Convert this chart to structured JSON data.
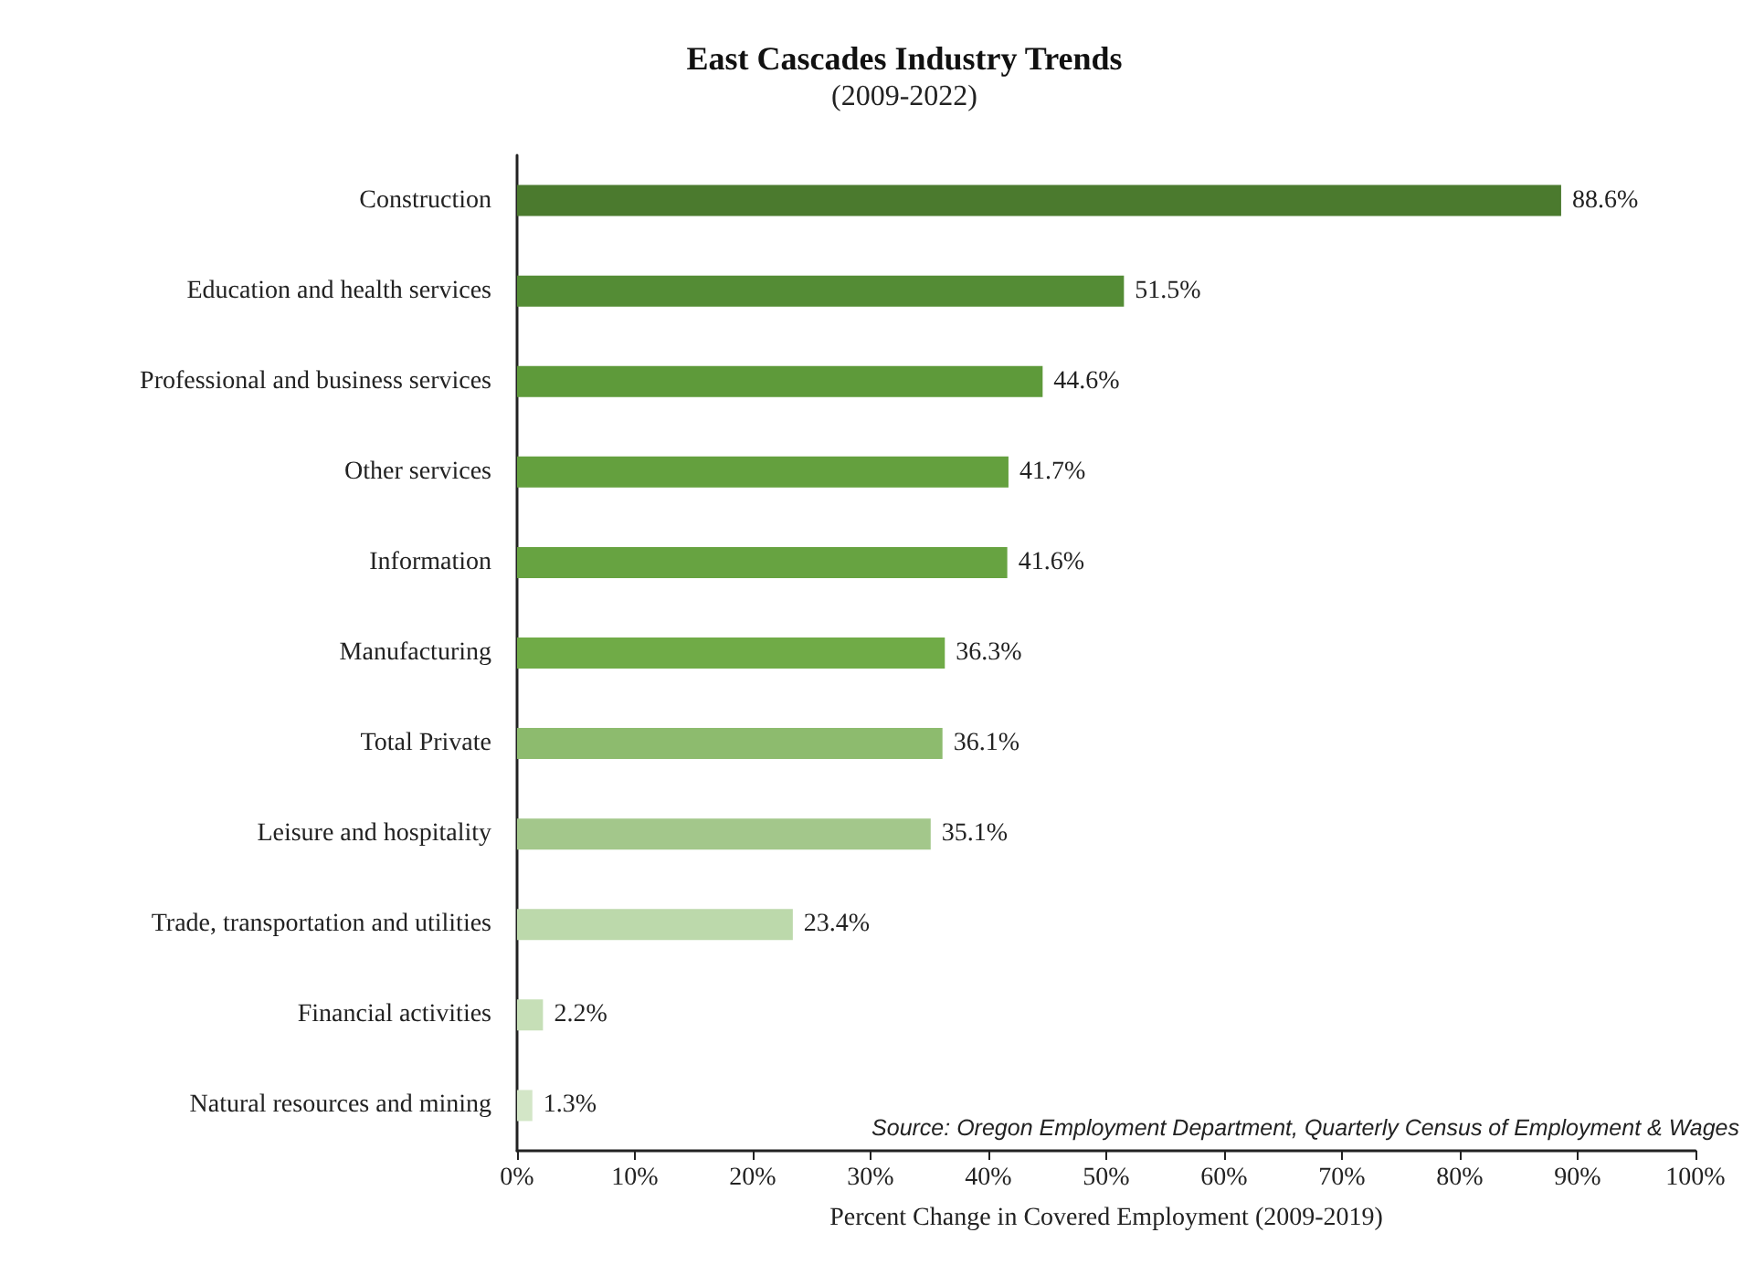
{
  "chart_data": {
    "type": "bar",
    "orientation": "horizontal",
    "title": "East Cascades Industry Trends",
    "subtitle": "(2009-2022)",
    "xlabel": "Percent Change in Covered Employment (2009-2019)",
    "categories": [
      "Construction",
      "Education and health services",
      "Professional and business services",
      "Other services",
      "Information",
      "Manufacturing",
      "Total Private",
      "Leisure and hospitality",
      "Trade, transportation and utilities",
      "Financial activities",
      "Natural resources and mining"
    ],
    "values": [
      88.6,
      51.5,
      44.6,
      41.7,
      41.6,
      36.3,
      36.1,
      35.1,
      23.4,
      2.2,
      1.3
    ],
    "colors": [
      "#4b7a2e",
      "#548c35",
      "#5e9a3a",
      "#64a03e",
      "#67a341",
      "#70ab47",
      "#8dbb6e",
      "#a3c78b",
      "#bcd9ab",
      "#c6dfb7",
      "#d3e6c7"
    ],
    "value_labels": [
      "88.6%",
      "51.5%",
      "44.6%",
      "41.7%",
      "41.6%",
      "36.3%",
      "36.1%",
      "35.1%",
      "23.4%",
      "2.2%",
      "1.3%"
    ],
    "xlim": [
      0,
      100
    ],
    "xticks": [
      {
        "value": 0,
        "label": "0%"
      },
      {
        "value": 10,
        "label": "10%"
      },
      {
        "value": 20,
        "label": "20%"
      },
      {
        "value": 30,
        "label": "30%"
      },
      {
        "value": 40,
        "label": "40%"
      },
      {
        "value": 50,
        "label": "50%"
      },
      {
        "value": 60,
        "label": "60%"
      },
      {
        "value": 70,
        "label": "70%"
      },
      {
        "value": 80,
        "label": "80%"
      },
      {
        "value": 90,
        "label": "90%"
      },
      {
        "value": 100,
        "label": "100%"
      }
    ],
    "annotations": [
      "Source: Oregon Employment Department, Quarterly Census of Employment & Wages"
    ],
    "grid": false
  }
}
